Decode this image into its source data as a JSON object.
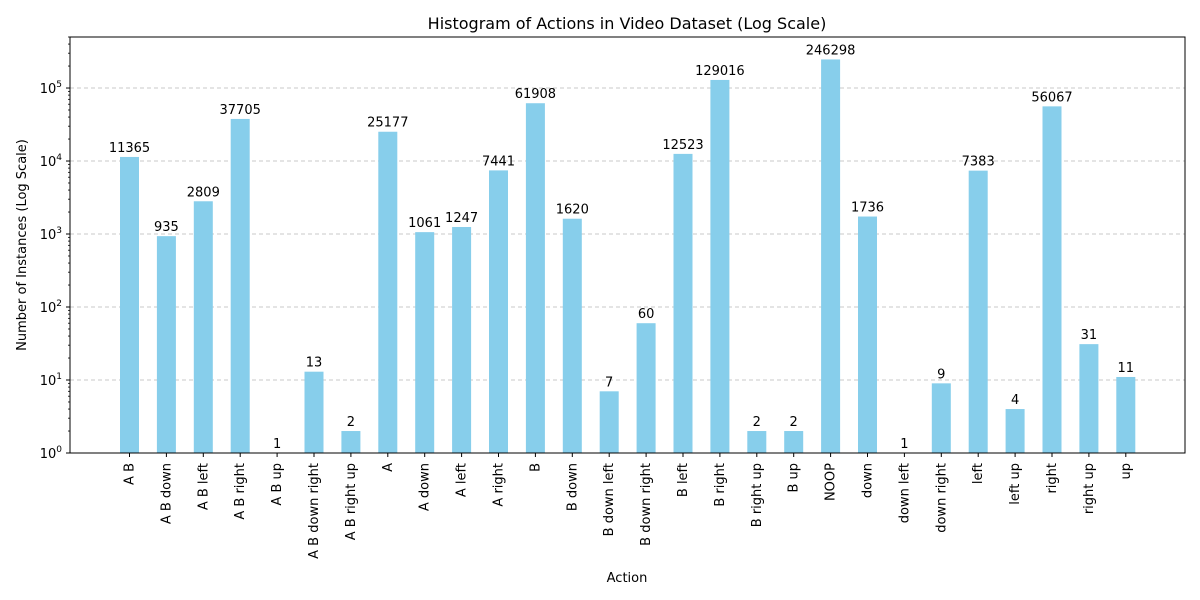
{
  "chart_data": {
    "type": "bar",
    "title": "Histogram of Actions in Video Dataset (Log Scale)",
    "xlabel": "Action",
    "ylabel": "Number of Instances (Log Scale)",
    "yscale": "log",
    "ylim": [
      1,
      500000
    ],
    "grid": "y-dashed",
    "bar_color": "#87ceeb",
    "categories": [
      "A B",
      "A B down",
      "A B left",
      "A B right",
      "A B up",
      "A B down right",
      "A B right up",
      "A",
      "A down",
      "A left",
      "A right",
      "B",
      "B down",
      "B down left",
      "B down right",
      "B left",
      "B right",
      "B right up",
      "B up",
      "NOOP",
      "down",
      "down left",
      "down right",
      "left",
      "left up",
      "right",
      "right up",
      "up"
    ],
    "values": [
      11365,
      935,
      2809,
      37705,
      1,
      13,
      2,
      25177,
      1061,
      1247,
      7441,
      61908,
      1620,
      7,
      60,
      12523,
      129016,
      2,
      2,
      246298,
      1736,
      1,
      9,
      7383,
      4,
      56067,
      31,
      11
    ],
    "yticks": [
      {
        "value": 1,
        "mantissa": "10",
        "exp": "0"
      },
      {
        "value": 10,
        "mantissa": "10",
        "exp": "1"
      },
      {
        "value": 100,
        "mantissa": "10",
        "exp": "2"
      },
      {
        "value": 1000,
        "mantissa": "10",
        "exp": "3"
      },
      {
        "value": 10000,
        "mantissa": "10",
        "exp": "4"
      },
      {
        "value": 100000,
        "mantissa": "10",
        "exp": "5"
      }
    ]
  }
}
